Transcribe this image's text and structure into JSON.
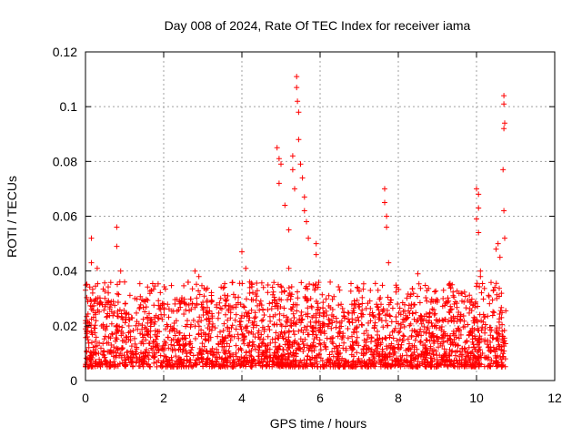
{
  "chart_data": {
    "type": "scatter",
    "title": "Day 008 of 2024, Rate Of TEC Index for receiver iama",
    "xlabel": "GPS time / hours",
    "ylabel": "ROTI / TECUs",
    "xlim": [
      0,
      12
    ],
    "ylim": [
      0,
      0.12
    ],
    "x_ticks": [
      0,
      2,
      4,
      6,
      8,
      10,
      12
    ],
    "x_tick_labels": [
      "0",
      "2",
      "4",
      "6",
      "8",
      "10",
      "12"
    ],
    "y_ticks": [
      0,
      0.02,
      0.04,
      0.06,
      0.08,
      0.1,
      0.12
    ],
    "y_tick_labels": [
      "0",
      "0.02",
      "0.04",
      "0.06",
      "0.08",
      "0.1",
      "0.12"
    ],
    "grid": true,
    "marker": "+",
    "color": "#ff0000",
    "data_x_range": [
      0,
      10.75
    ],
    "baseline_band": [
      0.005,
      0.03
    ],
    "outlier_points": [
      {
        "x": 0.0,
        "y": 0.033
      },
      {
        "x": 0.15,
        "y": 0.052
      },
      {
        "x": 0.15,
        "y": 0.043
      },
      {
        "x": 0.3,
        "y": 0.041
      },
      {
        "x": 0.8,
        "y": 0.056
      },
      {
        "x": 0.8,
        "y": 0.049
      },
      {
        "x": 0.9,
        "y": 0.04
      },
      {
        "x": 1.0,
        "y": 0.036
      },
      {
        "x": 2.8,
        "y": 0.04
      },
      {
        "x": 2.9,
        "y": 0.038
      },
      {
        "x": 4.0,
        "y": 0.047
      },
      {
        "x": 4.1,
        "y": 0.041
      },
      {
        "x": 4.2,
        "y": 0.036
      },
      {
        "x": 4.9,
        "y": 0.085
      },
      {
        "x": 4.95,
        "y": 0.081
      },
      {
        "x": 5.0,
        "y": 0.079
      },
      {
        "x": 4.95,
        "y": 0.072
      },
      {
        "x": 5.1,
        "y": 0.064
      },
      {
        "x": 5.2,
        "y": 0.055
      },
      {
        "x": 5.2,
        "y": 0.041
      },
      {
        "x": 5.3,
        "y": 0.082
      },
      {
        "x": 5.3,
        "y": 0.077
      },
      {
        "x": 5.35,
        "y": 0.07
      },
      {
        "x": 5.4,
        "y": 0.111
      },
      {
        "x": 5.4,
        "y": 0.107
      },
      {
        "x": 5.42,
        "y": 0.102
      },
      {
        "x": 5.45,
        "y": 0.098
      },
      {
        "x": 5.45,
        "y": 0.088
      },
      {
        "x": 5.5,
        "y": 0.079
      },
      {
        "x": 5.55,
        "y": 0.074
      },
      {
        "x": 5.6,
        "y": 0.067
      },
      {
        "x": 5.6,
        "y": 0.062
      },
      {
        "x": 5.65,
        "y": 0.058
      },
      {
        "x": 5.7,
        "y": 0.052
      },
      {
        "x": 5.9,
        "y": 0.05
      },
      {
        "x": 5.9,
        "y": 0.046
      },
      {
        "x": 7.65,
        "y": 0.07
      },
      {
        "x": 7.65,
        "y": 0.065
      },
      {
        "x": 7.7,
        "y": 0.06
      },
      {
        "x": 7.7,
        "y": 0.056
      },
      {
        "x": 7.75,
        "y": 0.043
      },
      {
        "x": 8.5,
        "y": 0.039
      },
      {
        "x": 10.0,
        "y": 0.07
      },
      {
        "x": 10.05,
        "y": 0.068
      },
      {
        "x": 10.05,
        "y": 0.063
      },
      {
        "x": 10.0,
        "y": 0.059
      },
      {
        "x": 10.05,
        "y": 0.054
      },
      {
        "x": 10.1,
        "y": 0.04
      },
      {
        "x": 10.1,
        "y": 0.038
      },
      {
        "x": 10.5,
        "y": 0.048
      },
      {
        "x": 10.55,
        "y": 0.05
      },
      {
        "x": 10.6,
        "y": 0.045
      },
      {
        "x": 10.7,
        "y": 0.104
      },
      {
        "x": 10.7,
        "y": 0.101
      },
      {
        "x": 10.72,
        "y": 0.094
      },
      {
        "x": 10.7,
        "y": 0.092
      },
      {
        "x": 10.68,
        "y": 0.077
      },
      {
        "x": 10.7,
        "y": 0.062
      },
      {
        "x": 10.72,
        "y": 0.052
      }
    ]
  }
}
